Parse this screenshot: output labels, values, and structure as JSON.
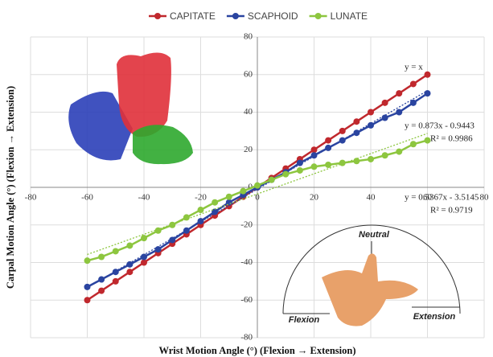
{
  "chart_data": {
    "type": "line",
    "x_label": "Wrist Motion Angle (°) (Flexion → Extension)",
    "y_label": "Carpal Motion Angle (°) (Flexion → Extension)",
    "x": [
      -60,
      -55,
      -50,
      -45,
      -40,
      -35,
      -30,
      -25,
      -20,
      -15,
      -10,
      -5,
      0,
      5,
      10,
      15,
      20,
      25,
      30,
      35,
      40,
      45,
      50,
      55,
      60
    ],
    "series": [
      {
        "name": "CAPITATE",
        "color": "#c0282d",
        "values": [
          -60,
          -55,
          -50,
          -45,
          -40,
          -35,
          -30,
          -25,
          -20,
          -15,
          -10,
          -5,
          0,
          5,
          10,
          15,
          20,
          25,
          30,
          35,
          40,
          45,
          50,
          55,
          60
        ]
      },
      {
        "name": "SCAPHOID",
        "color": "#2a44a0",
        "values": [
          -53,
          -49,
          -45,
          -41,
          -37,
          -33,
          -28,
          -23,
          -18,
          -13,
          -8,
          -4,
          0,
          4,
          8,
          13,
          17,
          21,
          25,
          29,
          33,
          37,
          40,
          45,
          50
        ],
        "trend": {
          "slope": 0.873,
          "intercept": -0.9443
        }
      },
      {
        "name": "LUNATE",
        "color": "#8dc63f",
        "values": [
          -39,
          -37,
          -34,
          -31,
          -27,
          -23,
          -20,
          -16,
          -12,
          -8,
          -5,
          -2,
          1,
          4,
          7,
          9,
          11,
          12,
          13,
          14,
          15,
          17,
          19,
          23,
          25
        ],
        "trend": {
          "slope": 0.5367,
          "intercept": -3.5145
        }
      }
    ],
    "xlim": [
      -80,
      80
    ],
    "xticks": [
      -80,
      -60,
      -40,
      -20,
      0,
      20,
      40,
      60,
      80
    ],
    "ylim": [
      -80,
      80
    ],
    "yticks": [
      -80,
      -60,
      -40,
      -20,
      0,
      20,
      40,
      60,
      80
    ],
    "grid": true,
    "legend": "top",
    "annotations": [
      {
        "text": "y = x"
      },
      {
        "text": "y = 0.873x - 0.9443"
      },
      {
        "text": "R² = 0.9986"
      },
      {
        "text": "y = 0.5367x - 3.5145"
      },
      {
        "text": "R² = 0.9719"
      }
    ],
    "inset_labels": [
      "Neutral",
      "Flexion",
      "Extension"
    ]
  }
}
